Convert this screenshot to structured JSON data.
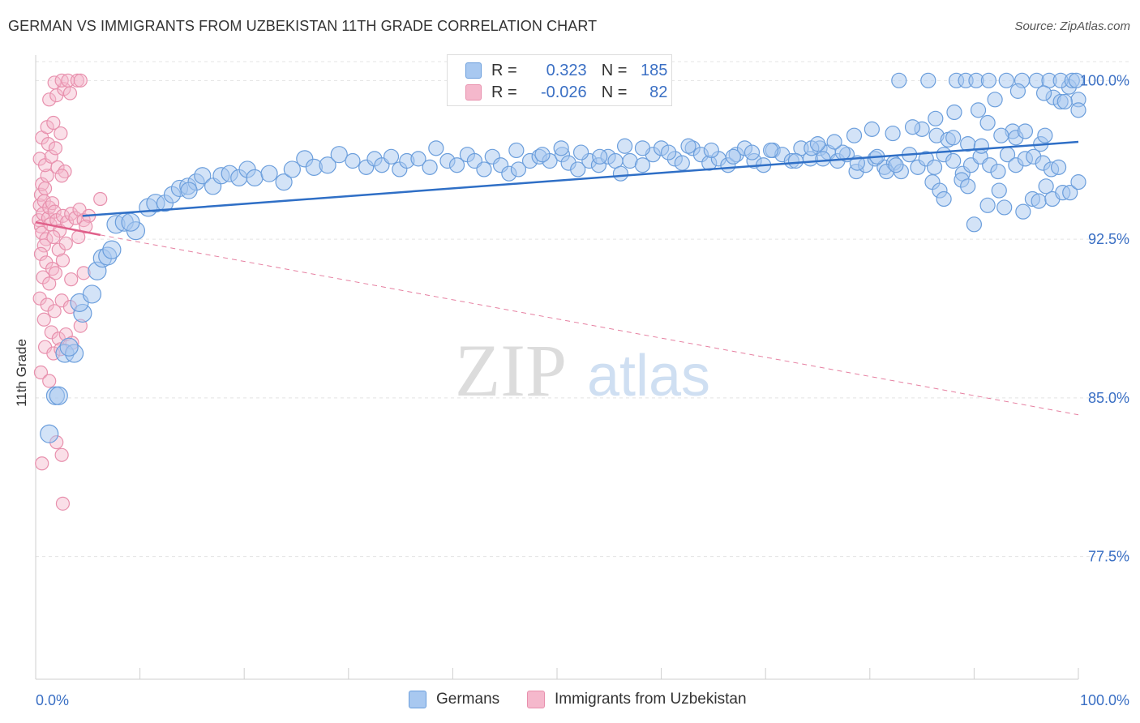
{
  "title": "GERMAN VS IMMIGRANTS FROM UZBEKISTAN 11TH GRADE CORRELATION CHART",
  "source": "Source: ZipAtlas.com",
  "watermark": {
    "zip": "ZIP",
    "atlas": "atlas"
  },
  "legend": {
    "r_label": "R =",
    "n_label": "N =",
    "german": {
      "r": "0.323",
      "n": "185"
    },
    "uzbek": {
      "r": "-0.026",
      "n": "82"
    }
  },
  "colors": {
    "german_fill": "#a8c8f0",
    "german_stroke": "#6b9edc",
    "german_line": "#2f6fc6",
    "uzbek_fill": "#f5b8cc",
    "uzbek_stroke": "#e890ad",
    "uzbek_line": "#e0608a",
    "axis_label": "#3a6fc4",
    "grid": "#e4e4e4"
  },
  "chart_data": {
    "type": "scatter",
    "title": "GERMAN VS IMMIGRANTS FROM UZBEKISTAN 11TH GRADE CORRELATION CHART",
    "xlabel": "",
    "ylabel": "11th Grade",
    "xlim": [
      0,
      100
    ],
    "ylim": [
      71.7,
      101.2
    ],
    "x_tick_labels": [
      {
        "value": 0,
        "label": "0.0%"
      },
      {
        "value": 100,
        "label": "100.0%"
      }
    ],
    "y_ticks": [
      {
        "value": 100.0,
        "label": "100.0%"
      },
      {
        "value": 92.5,
        "label": "92.5%"
      },
      {
        "value": 85.0,
        "label": "85.0%"
      },
      {
        "value": 77.5,
        "label": "77.5%"
      }
    ],
    "x_minor_ticks": [
      0,
      10,
      20,
      30,
      40,
      50,
      60,
      70,
      80,
      90,
      100
    ],
    "legend_labels": [
      "Germans",
      "Immigrants from Uzbekistan"
    ],
    "series": [
      {
        "name": "Germans",
        "r": 0.323,
        "n": 185,
        "trend": {
          "x0": 4.5,
          "y0": 93.6,
          "x1": 100,
          "y1": 97.1
        },
        "points": [
          [
            1.3,
            83.3
          ],
          [
            1.9,
            85.1
          ],
          [
            2.2,
            85.1
          ],
          [
            2.8,
            87.1
          ],
          [
            3.7,
            87.1
          ],
          [
            3.2,
            87.4
          ],
          [
            4.5,
            89.0
          ],
          [
            4.2,
            89.5
          ],
          [
            5.4,
            89.9
          ],
          [
            5.9,
            91.0
          ],
          [
            6.4,
            91.6
          ],
          [
            6.9,
            91.7
          ],
          [
            7.3,
            92.0
          ],
          [
            7.7,
            93.2
          ],
          [
            8.5,
            93.3
          ],
          [
            9.6,
            92.9
          ],
          [
            9.1,
            93.3
          ],
          [
            10.8,
            94.0
          ],
          [
            11.5,
            94.2
          ],
          [
            12.4,
            94.2
          ],
          [
            13.1,
            94.6
          ],
          [
            13.8,
            94.9
          ],
          [
            14.6,
            95.0
          ],
          [
            15.4,
            95.2
          ],
          [
            14.7,
            94.8
          ],
          [
            16.0,
            95.5
          ],
          [
            17.0,
            95.0
          ],
          [
            17.8,
            95.5
          ],
          [
            18.6,
            95.6
          ],
          [
            19.5,
            95.4
          ],
          [
            20.3,
            95.8
          ],
          [
            21.0,
            95.4
          ],
          [
            22.4,
            95.6
          ],
          [
            23.8,
            95.2
          ],
          [
            24.6,
            95.8
          ],
          [
            25.8,
            96.3
          ],
          [
            26.7,
            95.9
          ],
          [
            28.0,
            96.0
          ],
          [
            29.1,
            96.5
          ],
          [
            30.4,
            96.2
          ],
          [
            31.7,
            95.9
          ],
          [
            32.5,
            96.3
          ],
          [
            33.2,
            96.0
          ],
          [
            34.1,
            96.4
          ],
          [
            34.9,
            95.8
          ],
          [
            35.6,
            96.2
          ],
          [
            36.7,
            96.3
          ],
          [
            37.8,
            95.9
          ],
          [
            38.4,
            96.8
          ],
          [
            39.5,
            96.2
          ],
          [
            40.4,
            96.0
          ],
          [
            41.4,
            96.5
          ],
          [
            42.1,
            96.2
          ],
          [
            43.0,
            95.8
          ],
          [
            43.8,
            96.4
          ],
          [
            44.6,
            96.0
          ],
          [
            45.4,
            95.6
          ],
          [
            46.3,
            95.8
          ],
          [
            47.4,
            96.2
          ],
          [
            48.3,
            96.4
          ],
          [
            49.3,
            96.2
          ],
          [
            50.5,
            96.5
          ],
          [
            51.1,
            96.1
          ],
          [
            52.0,
            95.8
          ],
          [
            53.1,
            96.2
          ],
          [
            54.0,
            96.0
          ],
          [
            54.9,
            96.4
          ],
          [
            55.6,
            96.2
          ],
          [
            56.1,
            95.6
          ],
          [
            57.0,
            96.2
          ],
          [
            58.2,
            96.0
          ],
          [
            59.2,
            96.5
          ],
          [
            60.0,
            96.8
          ],
          [
            61.3,
            96.3
          ],
          [
            62.0,
            96.1
          ],
          [
            63.0,
            96.8
          ],
          [
            63.8,
            96.5
          ],
          [
            64.6,
            96.1
          ],
          [
            65.5,
            96.3
          ],
          [
            66.4,
            96.0
          ],
          [
            67.2,
            96.5
          ],
          [
            68.0,
            96.8
          ],
          [
            68.9,
            96.2
          ],
          [
            69.8,
            96.0
          ],
          [
            70.7,
            96.7
          ],
          [
            71.6,
            96.5
          ],
          [
            72.5,
            96.2
          ],
          [
            73.4,
            96.8
          ],
          [
            74.3,
            96.3
          ],
          [
            75.2,
            96.8
          ],
          [
            76.0,
            96.6
          ],
          [
            76.9,
            96.2
          ],
          [
            77.8,
            96.5
          ],
          [
            78.7,
            95.7
          ],
          [
            79.6,
            96.0
          ],
          [
            80.5,
            96.3
          ],
          [
            81.4,
            95.9
          ],
          [
            82.3,
            96.1
          ],
          [
            83.0,
            95.7
          ],
          [
            83.8,
            96.5
          ],
          [
            84.6,
            95.9
          ],
          [
            85.4,
            96.3
          ],
          [
            86.2,
            95.9
          ],
          [
            87.1,
            96.5
          ],
          [
            88.0,
            96.2
          ],
          [
            88.9,
            95.6
          ],
          [
            89.7,
            96.0
          ],
          [
            90.6,
            96.4
          ],
          [
            91.5,
            96.0
          ],
          [
            92.3,
            95.7
          ],
          [
            93.2,
            96.5
          ],
          [
            94.0,
            96.0
          ],
          [
            94.9,
            96.3
          ],
          [
            95.7,
            96.4
          ],
          [
            96.6,
            96.1
          ],
          [
            97.4,
            95.8
          ],
          [
            98.1,
            95.9
          ],
          [
            46.1,
            96.7
          ],
          [
            48.6,
            96.5
          ],
          [
            50.4,
            96.8
          ],
          [
            52.3,
            96.6
          ],
          [
            54.1,
            96.4
          ],
          [
            56.5,
            96.9
          ],
          [
            58.2,
            96.8
          ],
          [
            60.7,
            96.6
          ],
          [
            62.6,
            96.9
          ],
          [
            64.8,
            96.7
          ],
          [
            66.9,
            96.4
          ],
          [
            68.7,
            96.6
          ],
          [
            70.5,
            96.7
          ],
          [
            72.9,
            96.2
          ],
          [
            74.4,
            96.8
          ],
          [
            75.5,
            96.3
          ],
          [
            77.4,
            96.6
          ],
          [
            78.8,
            96.1
          ],
          [
            80.7,
            96.4
          ],
          [
            81.6,
            95.7
          ],
          [
            82.5,
            96.0
          ],
          [
            86.0,
            95.2
          ],
          [
            86.7,
            94.8
          ],
          [
            87.1,
            94.4
          ],
          [
            88.8,
            95.3
          ],
          [
            89.4,
            95.0
          ],
          [
            90.0,
            93.2
          ],
          [
            91.3,
            94.1
          ],
          [
            92.4,
            94.8
          ],
          [
            92.9,
            94.0
          ],
          [
            93.7,
            97.6
          ],
          [
            94.7,
            93.8
          ],
          [
            95.6,
            94.4
          ],
          [
            96.2,
            94.3
          ],
          [
            96.9,
            95.0
          ],
          [
            97.5,
            94.4
          ],
          [
            98.5,
            94.7
          ],
          [
            99.2,
            94.7
          ],
          [
            100.0,
            95.2
          ],
          [
            85.0,
            97.7
          ],
          [
            86.4,
            97.4
          ],
          [
            87.5,
            97.2
          ],
          [
            88.0,
            97.3
          ],
          [
            89.4,
            97.0
          ],
          [
            90.7,
            96.9
          ],
          [
            91.3,
            98.0
          ],
          [
            92.6,
            97.4
          ],
          [
            94.0,
            97.3
          ],
          [
            94.9,
            97.6
          ],
          [
            96.4,
            97.0
          ],
          [
            96.8,
            97.4
          ],
          [
            97.6,
            99.2
          ],
          [
            98.3,
            99.0
          ],
          [
            99.1,
            99.7
          ],
          [
            82.8,
            100.0
          ],
          [
            85.6,
            100.0
          ],
          [
            88.3,
            100.0
          ],
          [
            89.2,
            100.0
          ],
          [
            90.2,
            100.0
          ],
          [
            91.4,
            100.0
          ],
          [
            93.1,
            100.0
          ],
          [
            94.6,
            100.0
          ],
          [
            96.0,
            100.0
          ],
          [
            97.2,
            100.0
          ],
          [
            98.3,
            100.0
          ],
          [
            99.4,
            100.0
          ],
          [
            99.8,
            100.0
          ],
          [
            100.0,
            99.1
          ],
          [
            100.0,
            98.6
          ],
          [
            98.7,
            99.0
          ],
          [
            96.7,
            99.4
          ],
          [
            94.2,
            99.5
          ],
          [
            92.0,
            99.1
          ],
          [
            90.4,
            98.6
          ],
          [
            88.1,
            98.5
          ],
          [
            86.3,
            98.2
          ],
          [
            84.1,
            97.8
          ],
          [
            82.2,
            97.5
          ],
          [
            80.2,
            97.7
          ],
          [
            78.5,
            97.4
          ],
          [
            76.6,
            97.1
          ],
          [
            75.0,
            97.0
          ]
        ]
      },
      {
        "name": "Immigrants from Uzbekistan",
        "r": -0.026,
        "n": 82,
        "trend": {
          "x0": 0,
          "y0": 93.3,
          "x1": 6.2,
          "y1": 92.7
        },
        "trend_extension": {
          "x0": 6.2,
          "y0": 92.7,
          "x1": 100,
          "y1": 84.2
        },
        "points": [
          [
            0.3,
            93.4
          ],
          [
            0.5,
            93.1
          ],
          [
            0.6,
            92.8
          ],
          [
            0.4,
            94.1
          ],
          [
            0.7,
            93.7
          ],
          [
            0.5,
            94.6
          ],
          [
            0.8,
            94.3
          ],
          [
            0.6,
            95.1
          ],
          [
            0.9,
            94.9
          ],
          [
            1.1,
            95.5
          ],
          [
            1.2,
            93.5
          ],
          [
            1.4,
            93.2
          ],
          [
            1.0,
            92.5
          ],
          [
            0.8,
            92.2
          ],
          [
            1.3,
            94.0
          ],
          [
            1.6,
            94.2
          ],
          [
            1.8,
            93.8
          ],
          [
            2.0,
            93.4
          ],
          [
            2.3,
            92.9
          ],
          [
            1.7,
            92.6
          ],
          [
            2.6,
            93.6
          ],
          [
            3.0,
            93.3
          ],
          [
            3.4,
            93.7
          ],
          [
            3.8,
            93.5
          ],
          [
            4.2,
            93.9
          ],
          [
            4.6,
            93.4
          ],
          [
            5.1,
            93.6
          ],
          [
            6.2,
            94.4
          ],
          [
            0.4,
            96.3
          ],
          [
            0.9,
            96.0
          ],
          [
            1.5,
            96.4
          ],
          [
            2.1,
            95.9
          ],
          [
            2.8,
            95.7
          ],
          [
            0.6,
            97.3
          ],
          [
            1.2,
            97.0
          ],
          [
            1.9,
            96.8
          ],
          [
            1.1,
            97.8
          ],
          [
            1.7,
            98.0
          ],
          [
            2.4,
            97.5
          ],
          [
            1.3,
            99.1
          ],
          [
            2.0,
            99.3
          ],
          [
            2.7,
            99.6
          ],
          [
            3.3,
            99.4
          ],
          [
            1.8,
            99.9
          ],
          [
            2.5,
            100.0
          ],
          [
            3.1,
            100.0
          ],
          [
            4.0,
            100.0
          ],
          [
            4.3,
            100.0
          ],
          [
            0.5,
            91.8
          ],
          [
            1.0,
            91.4
          ],
          [
            1.6,
            91.1
          ],
          [
            2.2,
            92.0
          ],
          [
            2.9,
            92.3
          ],
          [
            0.7,
            90.7
          ],
          [
            1.3,
            90.4
          ],
          [
            1.9,
            90.9
          ],
          [
            2.6,
            91.5
          ],
          [
            3.4,
            90.6
          ],
          [
            4.6,
            90.9
          ],
          [
            0.4,
            89.7
          ],
          [
            1.1,
            89.4
          ],
          [
            1.8,
            89.1
          ],
          [
            2.5,
            89.6
          ],
          [
            3.3,
            89.3
          ],
          [
            4.3,
            88.4
          ],
          [
            0.8,
            88.7
          ],
          [
            1.5,
            88.1
          ],
          [
            2.2,
            87.8
          ],
          [
            2.9,
            88.0
          ],
          [
            3.5,
            87.6
          ],
          [
            0.9,
            87.4
          ],
          [
            1.7,
            87.1
          ],
          [
            2.4,
            87.3
          ],
          [
            0.5,
            86.2
          ],
          [
            1.3,
            85.8
          ],
          [
            2.0,
            82.9
          ],
          [
            2.5,
            82.3
          ],
          [
            0.6,
            81.9
          ],
          [
            2.6,
            80.0
          ],
          [
            4.1,
            92.6
          ],
          [
            4.8,
            93.1
          ],
          [
            2.5,
            95.5
          ]
        ]
      }
    ]
  },
  "bottom_legend": {
    "germans": "Germans",
    "uzbek": "Immigrants from Uzbekistan"
  }
}
